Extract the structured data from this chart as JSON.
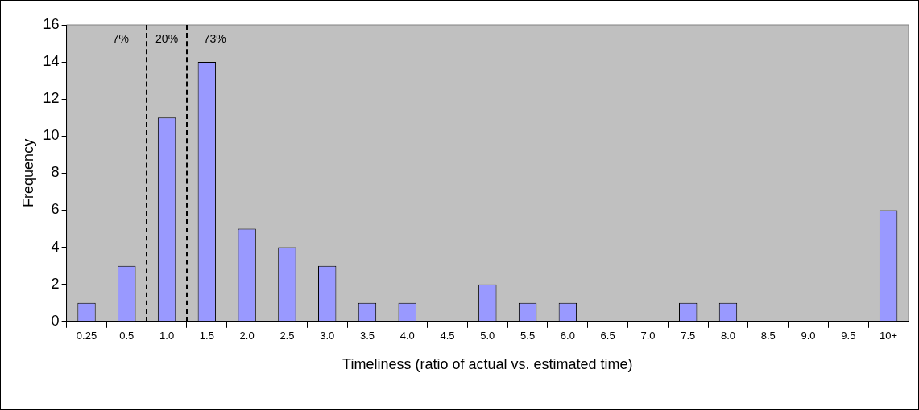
{
  "chart_data": {
    "type": "bar",
    "xlabel": "Timeliness (ratio of actual vs. estimated time)",
    "ylabel": "Frequency",
    "categories": [
      "0.25",
      "0.5",
      "1.0",
      "1.5",
      "2.0",
      "2.5",
      "3.0",
      "3.5",
      "4.0",
      "4.5",
      "5.0",
      "5.5",
      "6.0",
      "6.5",
      "7.0",
      "7.5",
      "8.0",
      "8.5",
      "9.0",
      "9.5",
      "10+"
    ],
    "values": [
      1,
      3,
      11,
      14,
      5,
      4,
      3,
      1,
      1,
      0,
      2,
      1,
      1,
      0,
      0,
      1,
      1,
      0,
      0,
      0,
      6
    ],
    "color": "#9999ff",
    "ylim": [
      0,
      16
    ],
    "yticks": [
      0,
      2,
      4,
      6,
      8,
      10,
      12,
      14,
      16
    ],
    "annotations": [
      "7%",
      "20%",
      "73%"
    ],
    "grid": false,
    "legend": false
  }
}
